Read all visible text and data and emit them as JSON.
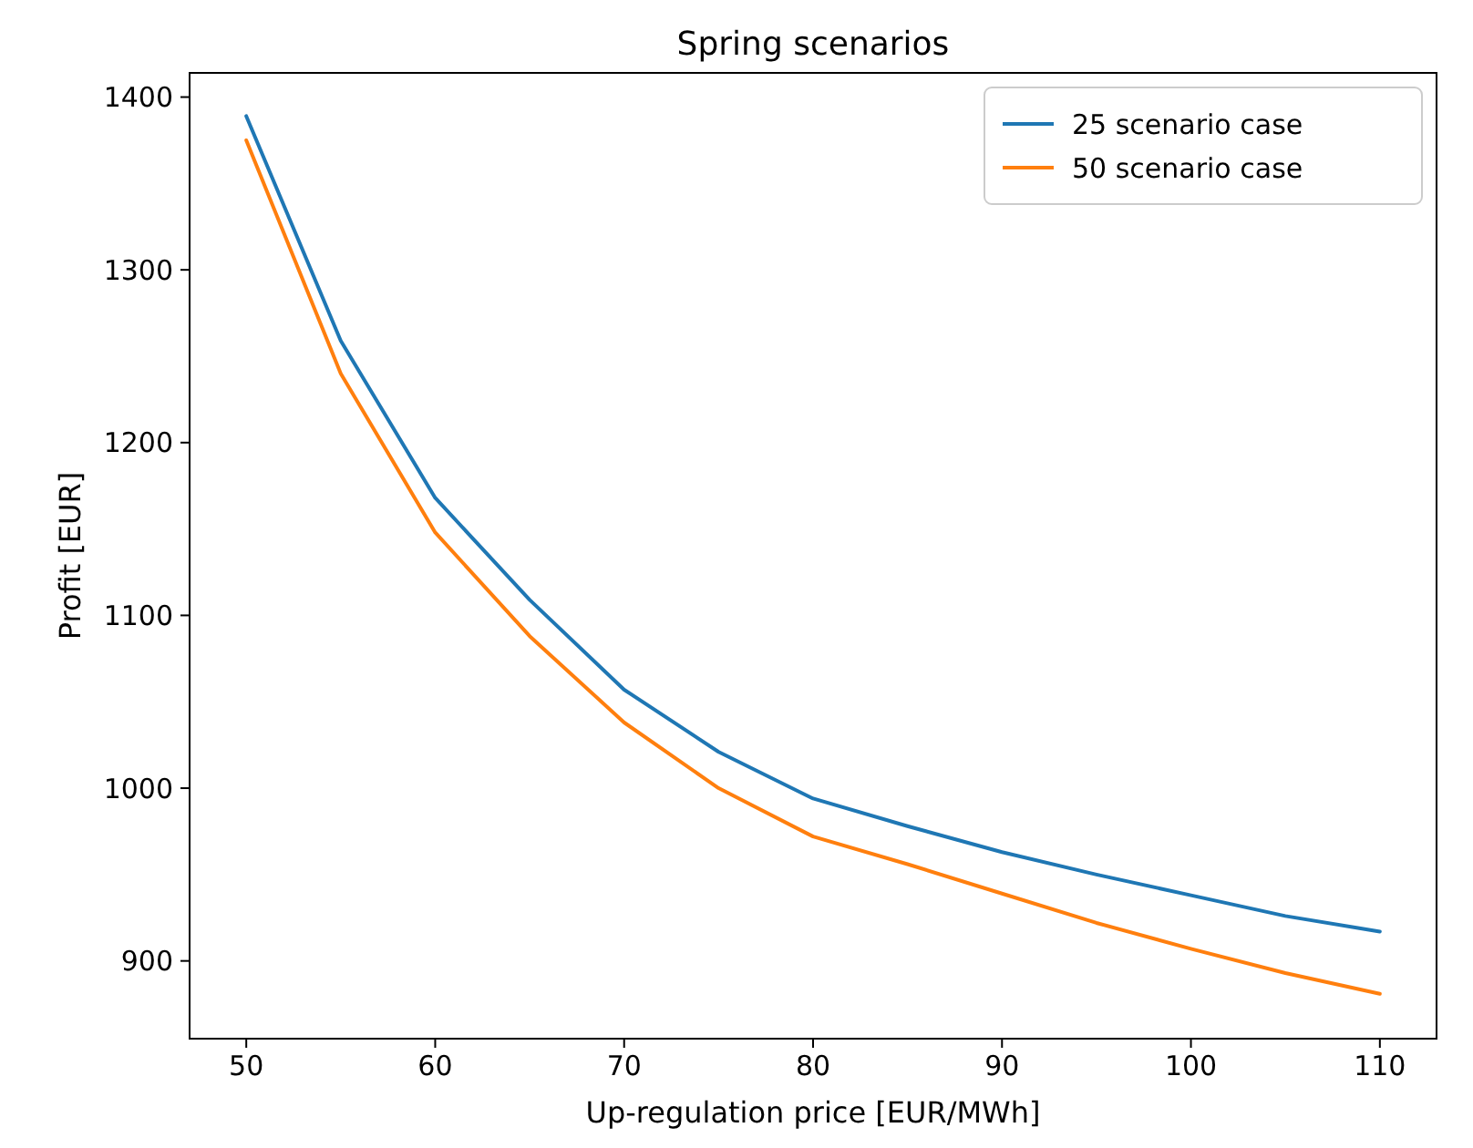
{
  "chart_data": {
    "type": "line",
    "title": "Spring scenarios",
    "xlabel": "Up-regulation price [EUR/MWh]",
    "ylabel": "Profit [EUR]",
    "x": [
      50,
      55,
      60,
      65,
      70,
      75,
      80,
      85,
      90,
      95,
      100,
      105,
      110
    ],
    "series": [
      {
        "name": "25 scenario case",
        "color": "#1f77b4",
        "values": [
          1389,
          1259,
          1168,
          1109,
          1057,
          1021,
          994,
          978,
          963,
          950,
          938,
          926,
          917
        ]
      },
      {
        "name": "50 scenario case",
        "color": "#ff7f0e",
        "values": [
          1375,
          1240,
          1148,
          1088,
          1038,
          1000,
          972,
          956,
          939,
          922,
          907,
          893,
          881
        ]
      }
    ],
    "xlim": [
      47,
      113
    ],
    "xticks": [
      50,
      60,
      70,
      80,
      90,
      100,
      110
    ],
    "ylim": [
      855,
      1414
    ],
    "yticks": [
      900,
      1000,
      1100,
      1200,
      1300,
      1400
    ],
    "grid": false,
    "legend": "top right",
    "marker": "none",
    "line_style": "solid"
  }
}
